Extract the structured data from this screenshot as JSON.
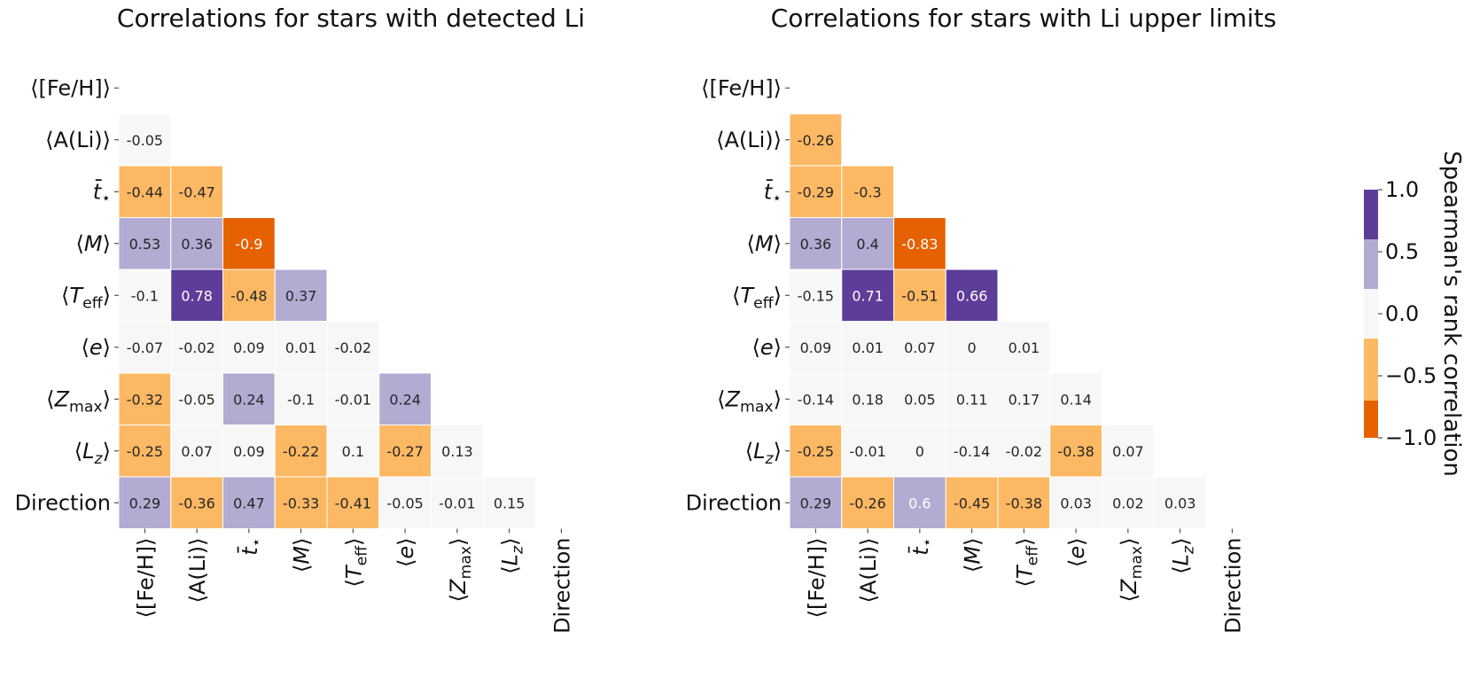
{
  "chart_data": [
    {
      "type": "heatmap",
      "title": "Correlations for stars with detected Li",
      "variables": [
        "⟨[Fe/H]⟩",
        "⟨A(Li)⟩",
        "t̄⋆",
        "⟨M⟩",
        "⟨Teff⟩",
        "⟨e⟩",
        "⟨Zmax⟩",
        "⟨Lz⟩",
        "Direction"
      ],
      "lower_triangle_rows": [
        [],
        [
          -0.05
        ],
        [
          -0.44,
          -0.47
        ],
        [
          0.53,
          0.36,
          -0.9
        ],
        [
          -0.1,
          0.78,
          -0.48,
          0.37
        ],
        [
          -0.07,
          -0.02,
          0.09,
          0.01,
          -0.02
        ],
        [
          -0.32,
          -0.05,
          0.24,
          -0.1,
          -0.01,
          0.24
        ],
        [
          -0.25,
          0.07,
          0.09,
          -0.22,
          0.1,
          -0.27,
          0.13
        ],
        [
          0.29,
          -0.36,
          0.47,
          -0.33,
          -0.41,
          -0.05,
          -0.01,
          0.15
        ]
      ]
    },
    {
      "type": "heatmap",
      "title": "Correlations for stars with Li upper limits",
      "variables": [
        "⟨[Fe/H]⟩",
        "⟨A(Li)⟩",
        "t̄⋆",
        "⟨M⟩",
        "⟨Teff⟩",
        "⟨e⟩",
        "⟨Zmax⟩",
        "⟨Lz⟩",
        "Direction"
      ],
      "lower_triangle_rows": [
        [],
        [
          -0.26
        ],
        [
          -0.29,
          -0.3
        ],
        [
          0.36,
          0.4,
          -0.83
        ],
        [
          -0.15,
          0.71,
          -0.51,
          0.66
        ],
        [
          0.09,
          0.01,
          0.07,
          0,
          0.01
        ],
        [
          -0.14,
          0.18,
          0.05,
          0.11,
          0.17,
          0.14
        ],
        [
          -0.25,
          -0.01,
          0,
          -0.14,
          -0.02,
          -0.38,
          0.07
        ],
        [
          0.29,
          -0.26,
          0.6,
          -0.45,
          -0.38,
          0.03,
          0.02,
          0.03
        ]
      ]
    }
  ],
  "colorbar": {
    "label": "Spearman's rank correlation",
    "range": [
      -1.0,
      1.0
    ],
    "ticks": [
      "1.0",
      "0.5",
      "0.0",
      "−0.5",
      "−1.0"
    ],
    "tick_values": [
      1.0,
      0.5,
      0.0,
      -0.5,
      -1.0
    ],
    "bins": [
      {
        "from": -1.0,
        "to": -0.7,
        "color": "#e66101"
      },
      {
        "from": -0.7,
        "to": -0.2,
        "color": "#fdb863"
      },
      {
        "from": -0.2,
        "to": 0.2,
        "color": "#f7f7f7"
      },
      {
        "from": 0.2,
        "to": 0.6,
        "color": "#b2abd2"
      },
      {
        "from": 0.6,
        "to": 1.0,
        "color": "#5e3c99"
      }
    ]
  }
}
